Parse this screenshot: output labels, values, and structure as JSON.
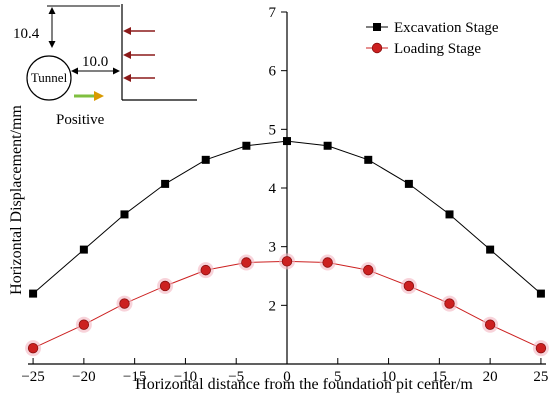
{
  "chart_data": {
    "type": "line",
    "title": "",
    "xlabel": "Horizontal distance from the foundation pit center/m",
    "ylabel": "Horizontal Displacement/mm",
    "xlim": [
      -25.5,
      25.5
    ],
    "ylim": [
      1.0,
      7.0
    ],
    "x_ticks": [
      -25,
      -20,
      -15,
      -10,
      -5,
      0,
      5,
      10,
      15,
      20,
      25
    ],
    "y_ticks": [
      2,
      3,
      4,
      5,
      6,
      7
    ],
    "y_ticks_with_labels": [
      2,
      3,
      4,
      5,
      6,
      7
    ],
    "legend_position": "top-right",
    "grid": false,
    "series": [
      {
        "name": "Excavation Stage",
        "color": "#000000",
        "marker": "square",
        "x": [
          -25,
          -20,
          -16,
          -12,
          -8,
          -4,
          0,
          4,
          8,
          12,
          16,
          20,
          25
        ],
        "y": [
          2.2,
          2.95,
          3.55,
          4.07,
          4.48,
          4.72,
          4.8,
          4.72,
          4.48,
          4.07,
          3.55,
          2.95,
          2.2
        ]
      },
      {
        "name": "Loading Stage",
        "color": "#cc2020",
        "marker": "circle",
        "x": [
          -25,
          -20,
          -16,
          -12,
          -8,
          -4,
          0,
          4,
          8,
          12,
          16,
          20,
          25
        ],
        "y": [
          1.27,
          1.67,
          2.03,
          2.33,
          2.6,
          2.73,
          2.75,
          2.73,
          2.6,
          2.33,
          2.03,
          1.67,
          1.27
        ]
      }
    ],
    "inset": {
      "tunnel_label": "Tunnel",
      "vertical_dimension": "10.4",
      "horizontal_dimension": "10.0",
      "direction_label": "Positive",
      "arrow_color": "#8b1a1a",
      "positive_arrow_colors": [
        "#7fbf3f",
        "#d99a00"
      ]
    }
  }
}
